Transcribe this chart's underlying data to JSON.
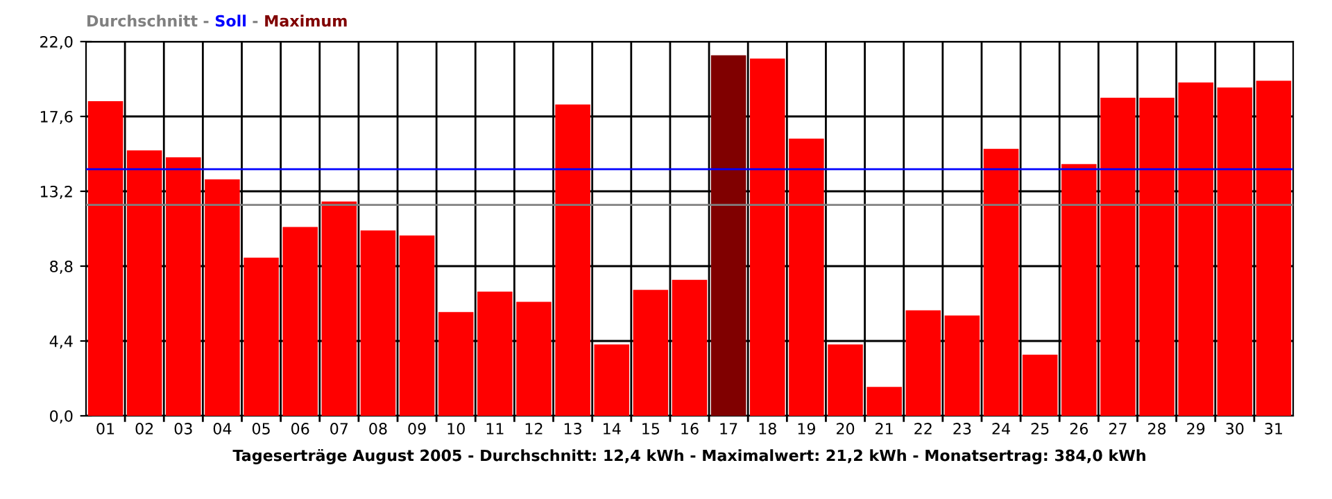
{
  "chart_data": {
    "type": "bar",
    "annotations": [
      "-",
      "-"
    ],
    "categories": [
      "01",
      "02",
      "03",
      "04",
      "05",
      "06",
      "07",
      "08",
      "09",
      "10",
      "11",
      "12",
      "13",
      "14",
      "15",
      "16",
      "17",
      "18",
      "19",
      "20",
      "21",
      "22",
      "23",
      "24",
      "25",
      "26",
      "27",
      "28",
      "29",
      "30",
      "31"
    ],
    "series": [
      {
        "color": "#ff0000",
        "values": [
          18.5,
          15.6,
          15.2,
          13.9,
          9.3,
          11.1,
          12.6,
          10.9,
          10.6,
          6.1,
          7.3,
          6.7,
          18.3,
          4.2,
          7.4,
          8.0,
          null,
          21.0,
          16.3,
          4.2,
          1.7,
          6.2,
          5.9,
          15.7,
          3.6,
          14.8,
          18.7,
          18.7,
          19.6,
          19.3,
          19.7
        ]
      },
      {
        "name": "Maximum",
        "color": "#800000",
        "values": [
          null,
          null,
          null,
          null,
          null,
          null,
          null,
          null,
          null,
          null,
          null,
          null,
          null,
          null,
          null,
          null,
          21.2,
          null,
          null,
          null,
          null,
          null,
          null,
          null,
          null,
          null,
          null,
          null,
          null,
          null,
          null
        ]
      }
    ],
    "ylim": [
      0,
      22
    ],
    "yticks": [
      {
        "value": 0,
        "label": "0,0"
      },
      {
        "value": 4.4,
        "label": "4,4"
      },
      {
        "value": 8.8,
        "label": "8,8"
      },
      {
        "value": 13.2,
        "label": "13,2"
      },
      {
        "value": 17.6,
        "label": "17,6"
      },
      {
        "value": 22,
        "label": "22,0"
      }
    ],
    "ref_lines": [
      {
        "axis": "y",
        "value": 12.4,
        "label": "Durchschnitt",
        "color": "#808080"
      },
      {
        "axis": "y",
        "value": 14.5,
        "label": "Soll",
        "color": "#0000ff"
      }
    ],
    "xlabel": "Tageserträge August 2005 - Durchschnitt: 12,4 kWh - Maximalwert: 21,2 kWh - Monatsertrag: 384,0 kWh",
    "grid": true,
    "legend": "top left"
  }
}
